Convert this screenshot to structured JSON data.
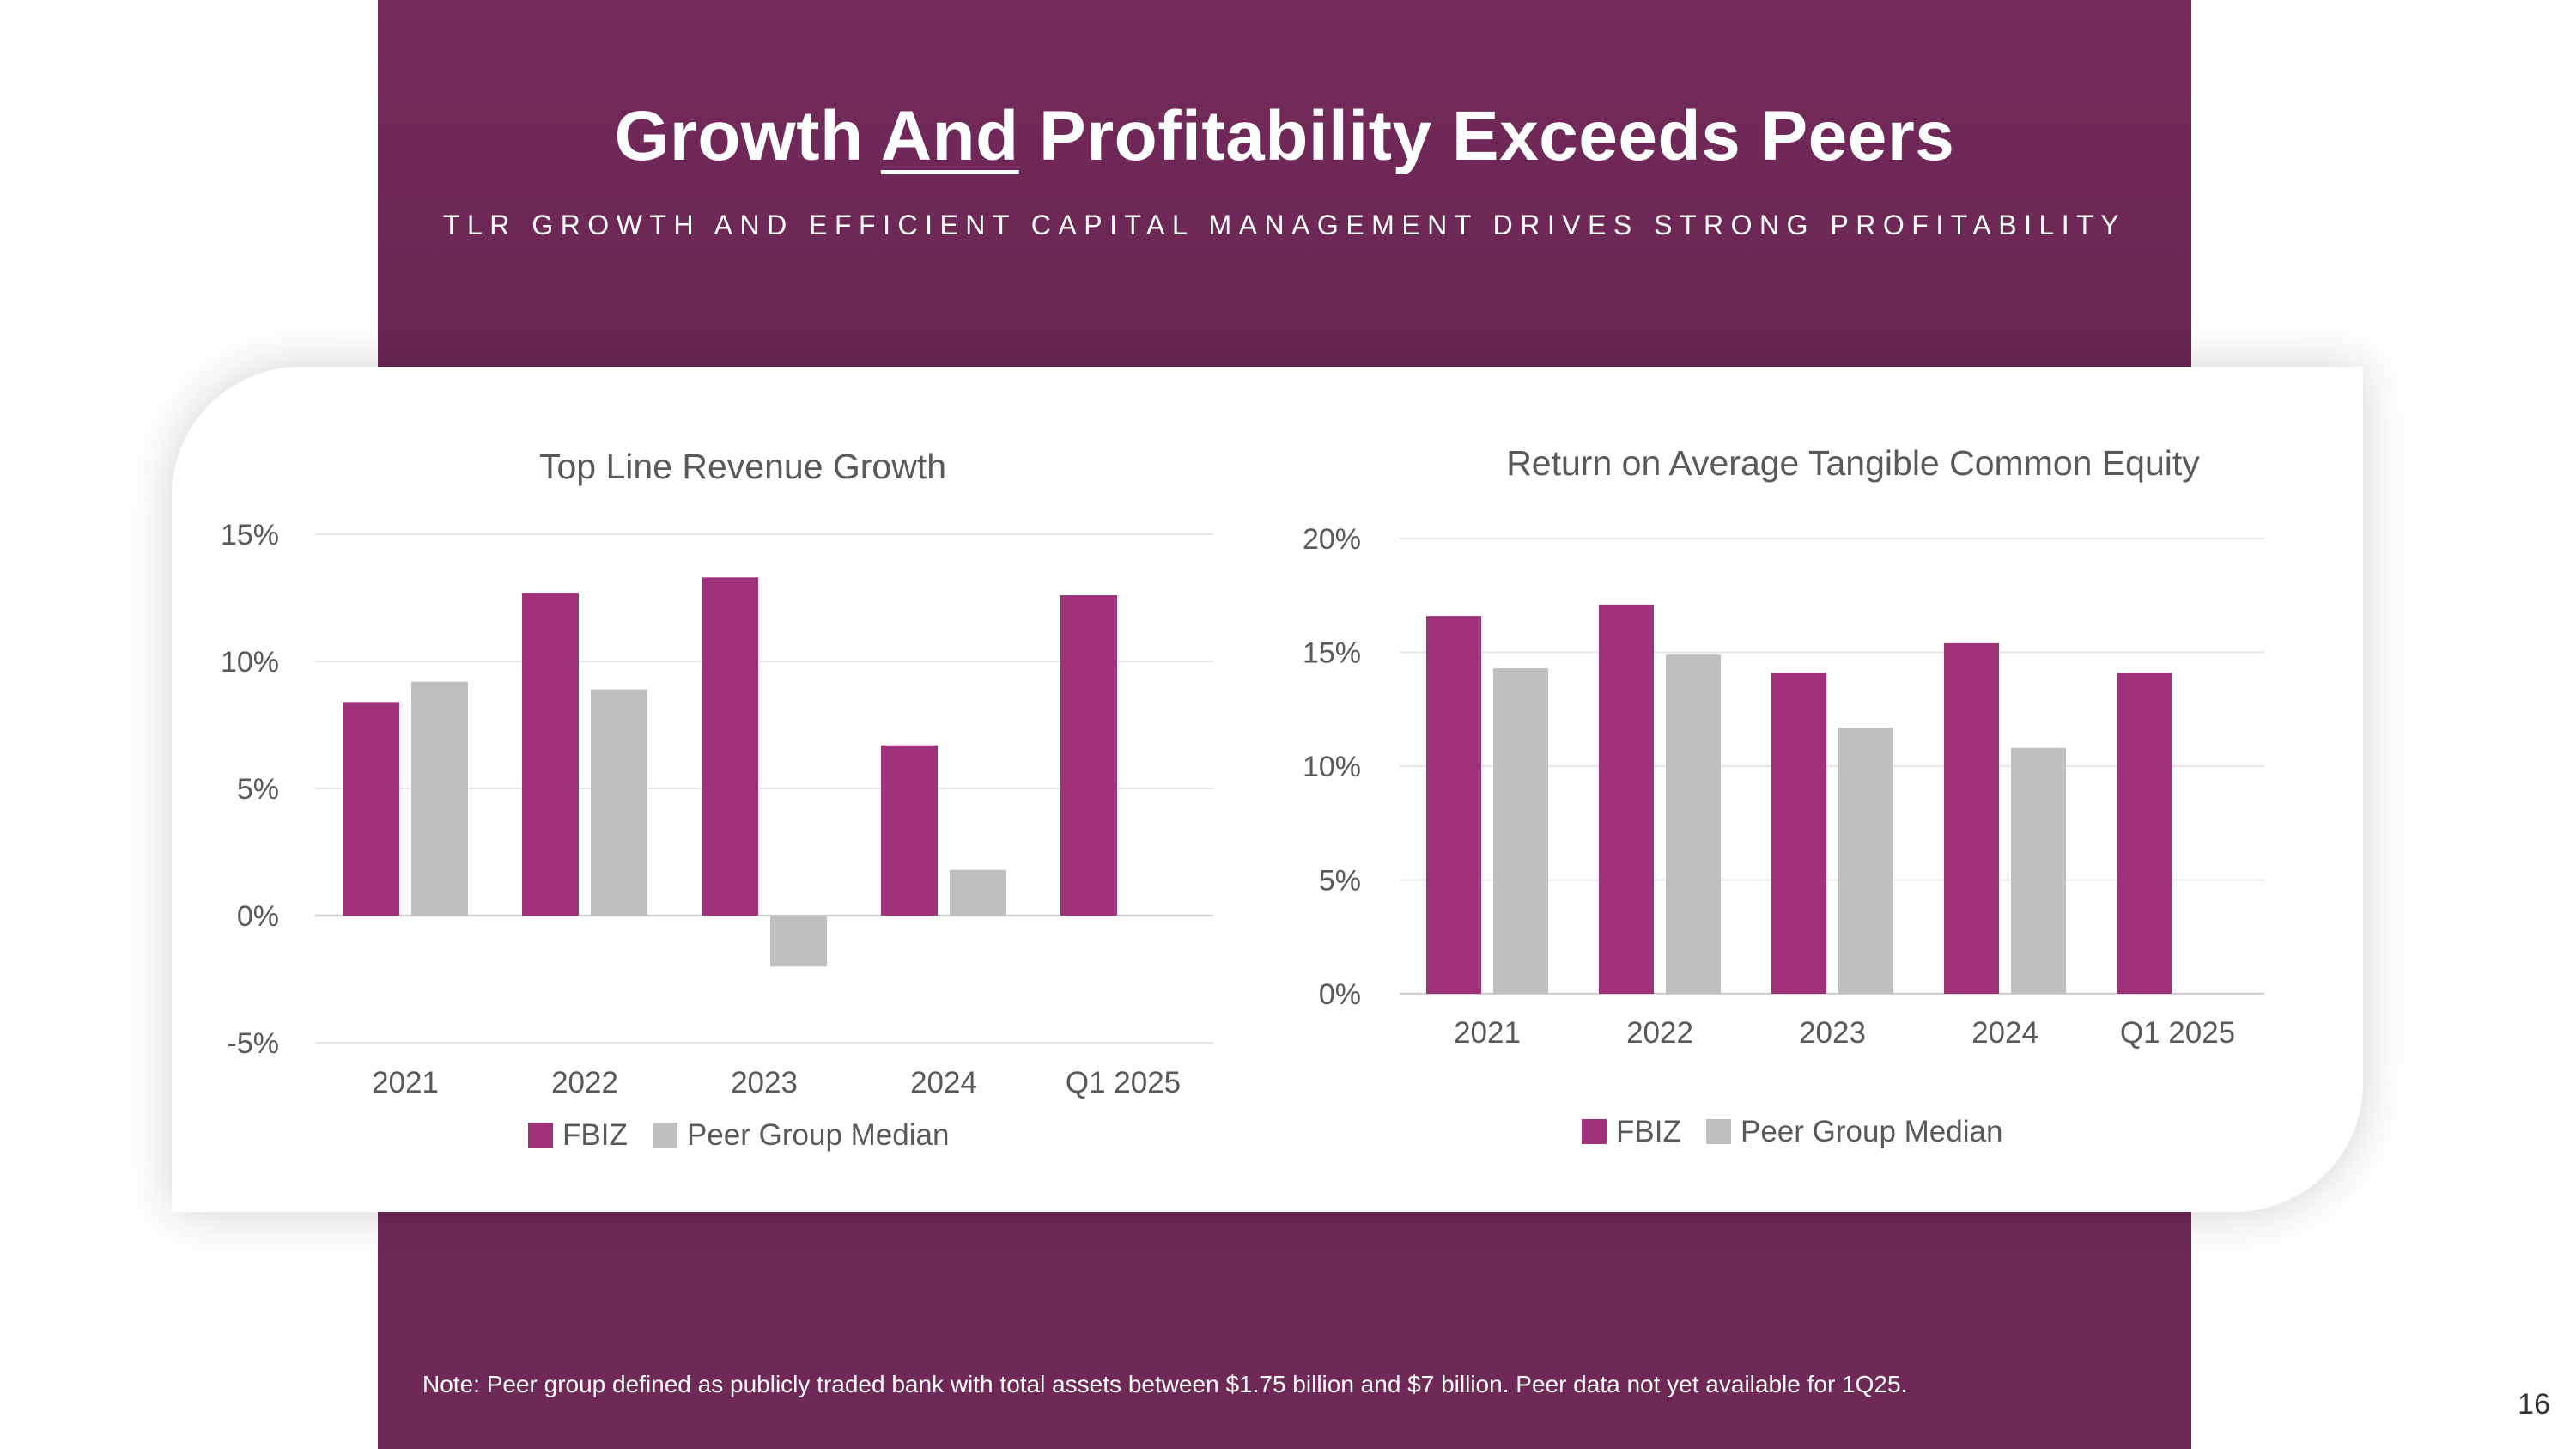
{
  "header": {
    "title_part1": "Growth",
    "title_part2": "And",
    "title_part3": "Profitability Exceeds Peers",
    "subtitle": "TLR GROWTH AND EFFICIENT CAPITAL MANAGEMENT DRIVES STRONG PROFITABILITY"
  },
  "colors": {
    "band": "#6e2957",
    "fbiz": "#a0327a",
    "peer": "#bfbfbf",
    "gridline": "#e6e6e6",
    "text": "#595959"
  },
  "chart_data": [
    {
      "type": "bar",
      "title": "Top Line Revenue Growth",
      "categories": [
        "2021",
        "2022",
        "2023",
        "2024",
        "Q1 2025"
      ],
      "series": [
        {
          "name": "FBIZ",
          "values": [
            8.4,
            12.7,
            13.3,
            6.7,
            12.6
          ]
        },
        {
          "name": "Peer Group Median",
          "values": [
            9.2,
            8.9,
            -2.0,
            1.8,
            null
          ]
        }
      ],
      "ylim": [
        -5,
        15
      ],
      "yticks": [
        -5,
        0,
        5,
        10,
        15
      ],
      "ytick_labels": [
        "-5%",
        "0%",
        "5%",
        "10%",
        "15%"
      ],
      "xlabel": "",
      "ylabel": "",
      "legend": "bottom"
    },
    {
      "type": "bar",
      "title": "Return on Average Tangible Common Equity",
      "categories": [
        "2021",
        "2022",
        "2023",
        "2024",
        "Q1 2025"
      ],
      "series": [
        {
          "name": "FBIZ",
          "values": [
            16.6,
            17.1,
            14.1,
            15.4,
            14.1
          ]
        },
        {
          "name": "Peer Group Median",
          "values": [
            14.3,
            14.9,
            11.7,
            10.8,
            null
          ]
        }
      ],
      "ylim": [
        0,
        20
      ],
      "yticks": [
        0,
        5,
        10,
        15,
        20
      ],
      "ytick_labels": [
        "0%",
        "5%",
        "10%",
        "15%",
        "20%"
      ],
      "xlabel": "",
      "ylabel": "",
      "legend": "bottom"
    }
  ],
  "footer": {
    "note": "Note: Peer group defined as publicly traded bank with total assets between $1.75 billion and $7 billion. Peer data not yet available for 1Q25.",
    "page_number": "16"
  }
}
